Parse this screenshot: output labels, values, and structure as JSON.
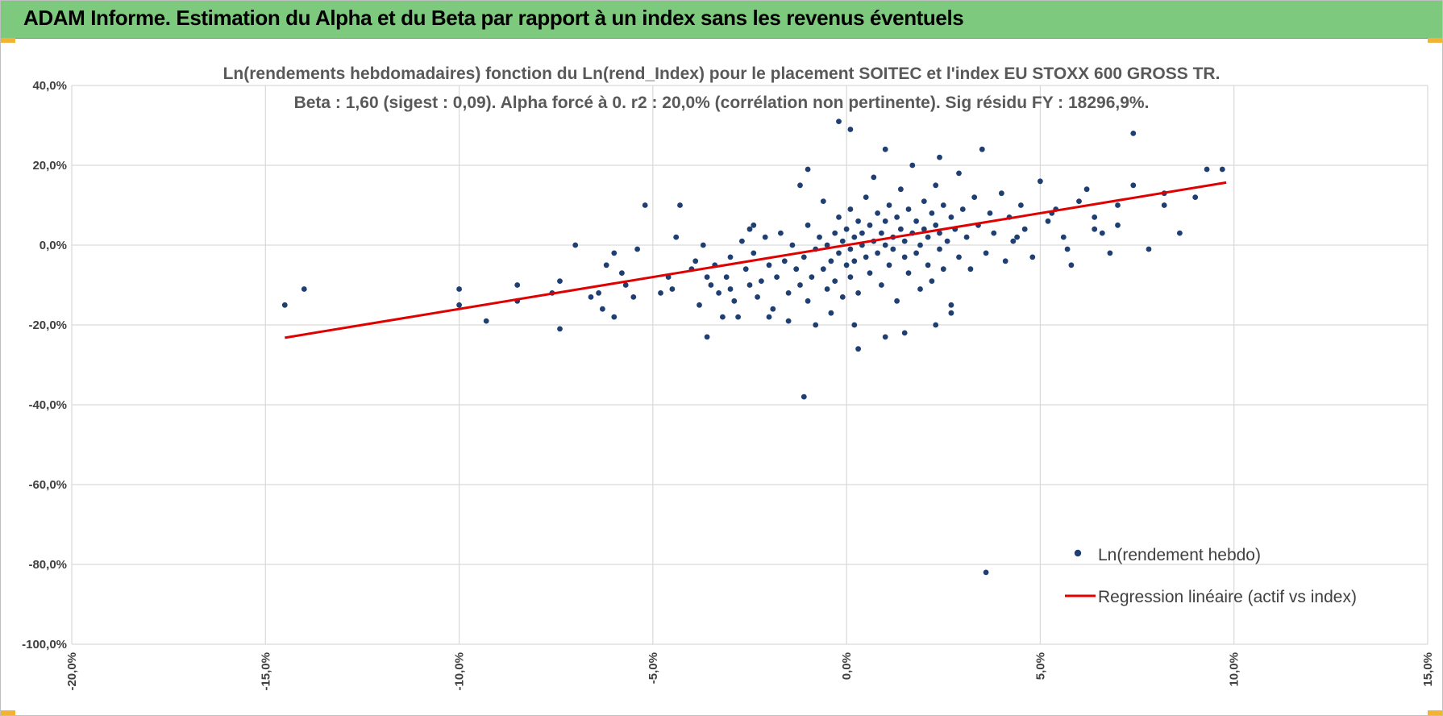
{
  "header": {
    "title": "ADAM Informe. Estimation du Alpha et du Beta par rapport à un index sans les revenus éventuels"
  },
  "colors": {
    "banner": "#7dc97d",
    "points": "#1f3f73",
    "regression": "#e00000",
    "grid": "#d9d9d9",
    "corner_accent": "#f2b233"
  },
  "chart_data": {
    "type": "scatter",
    "title_lines": [
      "Ln(rendements hebdomadaires) fonction du Ln(rend_Index) pour le placement SOITEC et l'index EU STOXX 600 GROSS TR.",
      "Beta : 1,60 (sigest : 0,09). Alpha forcé à 0. r2 : 20,0% (corrélation non pertinente). Sig résidu FY : 18296,9%."
    ],
    "xlabel": "",
    "ylabel": "",
    "xlim": [
      -0.2,
      0.15
    ],
    "ylim": [
      -1.0,
      0.4
    ],
    "x_ticks": [
      "-20,0%",
      "-15,0%",
      "-10,0%",
      "-5,0%",
      "0,0%",
      "5,0%",
      "10,0%",
      "15,0%"
    ],
    "y_ticks": [
      "40,0%",
      "20,0%",
      "0,0%",
      "-20,0%",
      "-40,0%",
      "-60,0%",
      "-80,0%",
      "-100,0%"
    ],
    "grid": true,
    "legend_position": "bottom-right",
    "regression": {
      "name": "Regression linéaire (actif vs index)",
      "beta": 1.6,
      "alpha": 0,
      "x_range": [
        -0.145,
        0.098
      ]
    },
    "series": [
      {
        "name": "Ln(rendement hebdo)",
        "points": [
          [
            -0.145,
            -0.15
          ],
          [
            -0.14,
            -0.11
          ],
          [
            -0.1,
            -0.15
          ],
          [
            -0.1,
            -0.11
          ],
          [
            -0.093,
            -0.19
          ],
          [
            -0.085,
            -0.14
          ],
          [
            -0.085,
            -0.1
          ],
          [
            -0.076,
            -0.12
          ],
          [
            -0.074,
            -0.21
          ],
          [
            -0.074,
            -0.09
          ],
          [
            -0.07,
            0.0
          ],
          [
            -0.066,
            -0.13
          ],
          [
            -0.063,
            -0.16
          ],
          [
            -0.062,
            -0.05
          ],
          [
            -0.06,
            -0.18
          ],
          [
            -0.06,
            -0.02
          ],
          [
            -0.057,
            -0.1
          ],
          [
            -0.055,
            -0.13
          ],
          [
            -0.054,
            -0.01
          ],
          [
            -0.052,
            0.1
          ],
          [
            -0.048,
            -0.12
          ],
          [
            -0.046,
            -0.08
          ],
          [
            -0.045,
            -0.11
          ],
          [
            -0.044,
            0.02
          ],
          [
            -0.043,
            0.1
          ],
          [
            -0.04,
            -0.06
          ],
          [
            -0.039,
            -0.04
          ],
          [
            -0.038,
            -0.15
          ],
          [
            -0.037,
            0.0
          ],
          [
            -0.036,
            -0.08
          ],
          [
            -0.036,
            -0.23
          ],
          [
            -0.035,
            -0.1
          ],
          [
            -0.034,
            -0.05
          ],
          [
            -0.033,
            -0.12
          ],
          [
            -0.032,
            -0.18
          ],
          [
            -0.031,
            -0.08
          ],
          [
            -0.03,
            -0.03
          ],
          [
            -0.029,
            -0.14
          ],
          [
            -0.028,
            -0.18
          ],
          [
            -0.027,
            0.01
          ],
          [
            -0.026,
            -0.06
          ],
          [
            -0.025,
            -0.1
          ],
          [
            -0.025,
            0.04
          ],
          [
            -0.024,
            -0.02
          ],
          [
            -0.023,
            -0.13
          ],
          [
            -0.022,
            -0.09
          ],
          [
            -0.021,
            0.02
          ],
          [
            -0.02,
            -0.05
          ],
          [
            -0.019,
            -0.16
          ],
          [
            -0.018,
            -0.08
          ],
          [
            -0.017,
            0.03
          ],
          [
            -0.016,
            -0.04
          ],
          [
            -0.015,
            -0.12
          ],
          [
            -0.015,
            -0.19
          ],
          [
            -0.014,
            0.0
          ],
          [
            -0.013,
            -0.06
          ],
          [
            -0.012,
            0.15
          ],
          [
            -0.012,
            -0.1
          ],
          [
            -0.011,
            -0.03
          ],
          [
            -0.01,
            -0.14
          ],
          [
            -0.01,
            0.05
          ],
          [
            -0.009,
            -0.08
          ],
          [
            -0.008,
            -0.01
          ],
          [
            -0.008,
            -0.2
          ],
          [
            -0.007,
            0.02
          ],
          [
            -0.006,
            -0.06
          ],
          [
            -0.006,
            0.11
          ],
          [
            -0.005,
            -0.11
          ],
          [
            -0.005,
            0.0
          ],
          [
            -0.004,
            -0.04
          ],
          [
            -0.004,
            -0.17
          ],
          [
            -0.003,
            0.03
          ],
          [
            -0.003,
            -0.09
          ],
          [
            -0.002,
            -0.02
          ],
          [
            -0.002,
            0.07
          ],
          [
            -0.001,
            -0.13
          ],
          [
            -0.001,
            0.01
          ],
          [
            0.0,
            -0.05
          ],
          [
            0.0,
            0.04
          ],
          [
            0.001,
            -0.01
          ],
          [
            0.001,
            -0.08
          ],
          [
            0.001,
            0.09
          ],
          [
            0.002,
            0.02
          ],
          [
            0.002,
            -0.04
          ],
          [
            0.003,
            0.06
          ],
          [
            0.003,
            -0.12
          ],
          [
            0.004,
            0.0
          ],
          [
            0.004,
            0.03
          ],
          [
            0.005,
            -0.03
          ],
          [
            0.005,
            0.12
          ],
          [
            0.006,
            0.05
          ],
          [
            0.006,
            -0.07
          ],
          [
            0.007,
            0.01
          ],
          [
            0.007,
            0.17
          ],
          [
            0.008,
            -0.02
          ],
          [
            0.008,
            0.08
          ],
          [
            0.009,
            0.03
          ],
          [
            0.009,
            -0.1
          ],
          [
            0.01,
            0.0
          ],
          [
            0.01,
            0.06
          ],
          [
            0.011,
            -0.05
          ],
          [
            0.011,
            0.1
          ],
          [
            0.012,
            0.02
          ],
          [
            0.012,
            -0.01
          ],
          [
            0.013,
            0.07
          ],
          [
            0.013,
            -0.14
          ],
          [
            0.014,
            0.04
          ],
          [
            0.014,
            0.14
          ],
          [
            0.015,
            -0.03
          ],
          [
            0.015,
            0.01
          ],
          [
            0.016,
            0.09
          ],
          [
            0.016,
            -0.07
          ],
          [
            0.017,
            0.03
          ],
          [
            0.017,
            0.2
          ],
          [
            0.018,
            -0.02
          ],
          [
            0.018,
            0.06
          ],
          [
            0.019,
            0.0
          ],
          [
            0.019,
            -0.11
          ],
          [
            0.02,
            0.11
          ],
          [
            0.02,
            0.04
          ],
          [
            0.021,
            -0.05
          ],
          [
            0.021,
            0.02
          ],
          [
            0.022,
            0.08
          ],
          [
            0.022,
            -0.09
          ],
          [
            0.023,
            0.05
          ],
          [
            0.023,
            0.15
          ],
          [
            0.024,
            -0.01
          ],
          [
            0.024,
            0.03
          ],
          [
            0.025,
            0.1
          ],
          [
            0.025,
            -0.06
          ],
          [
            0.026,
            0.01
          ],
          [
            0.027,
            0.07
          ],
          [
            0.027,
            -0.15
          ],
          [
            0.028,
            0.04
          ],
          [
            0.029,
            0.18
          ],
          [
            0.029,
            -0.03
          ],
          [
            0.03,
            0.09
          ],
          [
            0.031,
            0.02
          ],
          [
            0.032,
            -0.06
          ],
          [
            0.033,
            0.12
          ],
          [
            0.034,
            0.05
          ],
          [
            0.035,
            0.24
          ],
          [
            0.036,
            -0.02
          ],
          [
            0.037,
            0.08
          ],
          [
            0.038,
            0.03
          ],
          [
            0.04,
            0.13
          ],
          [
            0.041,
            -0.04
          ],
          [
            0.042,
            0.07
          ],
          [
            0.043,
            0.01
          ],
          [
            0.045,
            0.1
          ],
          [
            0.046,
            0.04
          ],
          [
            0.048,
            -0.03
          ],
          [
            0.05,
            0.16
          ],
          [
            0.052,
            0.06
          ],
          [
            0.054,
            0.09
          ],
          [
            0.056,
            0.02
          ],
          [
            0.058,
            -0.05
          ],
          [
            0.06,
            0.11
          ],
          [
            0.062,
            0.14
          ],
          [
            0.064,
            0.07
          ],
          [
            0.066,
            0.03
          ],
          [
            0.068,
            -0.02
          ],
          [
            0.07,
            0.05
          ],
          [
            0.074,
            0.15
          ],
          [
            0.078,
            -0.01
          ],
          [
            0.082,
            0.1
          ],
          [
            0.086,
            0.03
          ],
          [
            0.09,
            0.12
          ],
          [
            0.093,
            0.19
          ],
          [
            0.097,
            0.19
          ],
          [
            0.074,
            0.28
          ],
          [
            0.01,
            0.24
          ],
          [
            -0.002,
            0.31
          ],
          [
            -0.01,
            0.19
          ],
          [
            0.001,
            0.29
          ],
          [
            0.024,
            0.22
          ],
          [
            0.003,
            -0.26
          ],
          [
            -0.011,
            -0.38
          ],
          [
            0.023,
            -0.2
          ],
          [
            0.01,
            -0.23
          ],
          [
            0.036,
            -0.82
          ],
          [
            0.002,
            -0.2
          ],
          [
            -0.02,
            -0.18
          ],
          [
            0.015,
            -0.22
          ],
          [
            0.027,
            -0.17
          ],
          [
            -0.03,
            -0.11
          ],
          [
            -0.024,
            0.05
          ],
          [
            0.044,
            0.02
          ],
          [
            0.053,
            0.08
          ],
          [
            0.057,
            -0.01
          ],
          [
            0.064,
            0.04
          ],
          [
            0.07,
            0.1
          ],
          [
            0.082,
            0.13
          ],
          [
            -0.058,
            -0.07
          ],
          [
            -0.064,
            -0.12
          ]
        ]
      }
    ]
  }
}
